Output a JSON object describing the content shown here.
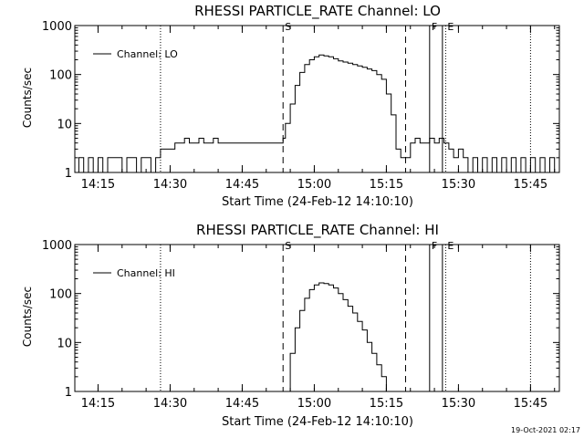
{
  "footer": {
    "timestamp": "19-Oct-2021 02:17"
  },
  "chart_data": [
    {
      "type": "line",
      "title": "RHESSI PARTICLE_RATE Channel: LO",
      "xlabel": "Start Time (24-Feb-12 14:10:10)",
      "ylabel": "Counts/sec",
      "y_scale": "log",
      "x_units": "time of day (24-Feb-12)",
      "xlim": [
        "14:10:10",
        "15:51:00"
      ],
      "ylim": [
        1,
        1000
      ],
      "x_ticks": [
        "14:15",
        "14:30",
        "14:45",
        "15:00",
        "15:15",
        "15:30",
        "15:45"
      ],
      "y_ticks": [
        "1",
        "10",
        "100",
        "1000"
      ],
      "grid": false,
      "legend": {
        "position": "top-left",
        "entries": [
          "Channel: LO"
        ]
      },
      "markers": [
        {
          "time": "14:28:00",
          "style": "dotted",
          "label": ""
        },
        {
          "time": "14:53:30",
          "style": "dashed",
          "label": "S"
        },
        {
          "time": "15:19:00",
          "style": "dashed",
          "label": ""
        },
        {
          "time": "15:24:00",
          "style": "solid",
          "label": "F"
        },
        {
          "time": "15:26:40",
          "style": "solid",
          "label": ""
        },
        {
          "time": "15:27:20",
          "style": "dotted",
          "label": "E"
        },
        {
          "time": "15:45:00",
          "style": "dotted",
          "label": ""
        }
      ],
      "series": [
        {
          "name": "Channel: LO",
          "x": [
            "14:10:10",
            "14:11:00",
            "14:12:00",
            "14:13:00",
            "14:14:00",
            "14:15:00",
            "14:16:00",
            "14:17:00",
            "14:18:00",
            "14:19:00",
            "14:20:00",
            "14:21:00",
            "14:22:00",
            "14:23:00",
            "14:24:00",
            "14:25:00",
            "14:26:00",
            "14:27:00",
            "14:28:00",
            "14:30:00",
            "14:31:00",
            "14:32:00",
            "14:33:00",
            "14:34:00",
            "14:35:00",
            "14:36:00",
            "14:37:00",
            "14:38:00",
            "14:39:00",
            "14:40:00",
            "14:42:00",
            "14:44:00",
            "14:46:00",
            "14:48:00",
            "14:50:00",
            "14:52:00",
            "14:53:30",
            "14:54:00",
            "14:55:00",
            "14:56:00",
            "14:57:00",
            "14:58:00",
            "14:59:00",
            "15:00:00",
            "15:01:00",
            "15:02:00",
            "15:03:00",
            "15:04:00",
            "15:05:00",
            "15:06:00",
            "15:07:00",
            "15:08:00",
            "15:09:00",
            "15:10:00",
            "15:11:00",
            "15:12:00",
            "15:13:00",
            "15:14:00",
            "15:15:00",
            "15:16:00",
            "15:17:00",
            "15:18:00",
            "15:19:00",
            "15:20:00",
            "15:21:00",
            "15:22:00",
            "15:23:00",
            "15:24:00",
            "15:25:00",
            "15:26:00",
            "15:27:00",
            "15:28:00",
            "15:29:00",
            "15:30:00",
            "15:31:00",
            "15:32:00",
            "15:33:00",
            "15:34:00",
            "15:35:00",
            "15:36:00",
            "15:37:00",
            "15:38:00",
            "15:39:00",
            "15:40:00",
            "15:41:00",
            "15:42:00",
            "15:43:00",
            "15:44:00",
            "15:45:00",
            "15:46:00",
            "15:47:00",
            "15:48:00",
            "15:49:00",
            "15:50:00",
            "15:51:00"
          ],
          "y": [
            1,
            2,
            1,
            2,
            1,
            2,
            1,
            2,
            2,
            2,
            1,
            2,
            2,
            1,
            2,
            2,
            1,
            2,
            3,
            3,
            4,
            4,
            5,
            4,
            4,
            5,
            4,
            4,
            5,
            4,
            4,
            4,
            4,
            4,
            4,
            4,
            5,
            10,
            25,
            60,
            110,
            160,
            200,
            230,
            250,
            240,
            230,
            210,
            190,
            180,
            170,
            160,
            150,
            140,
            130,
            120,
            100,
            80,
            40,
            15,
            3,
            2,
            2,
            4,
            5,
            4,
            4,
            5,
            4,
            5,
            4,
            3,
            2,
            3,
            2,
            1,
            2,
            1,
            2,
            1,
            2,
            1,
            2,
            1,
            2,
            1,
            2,
            1,
            2,
            1,
            2,
            1,
            2,
            1,
            2
          ]
        }
      ]
    },
    {
      "type": "line",
      "title": "RHESSI PARTICLE_RATE Channel: HI",
      "xlabel": "Start Time (24-Feb-12 14:10:10)",
      "ylabel": "Counts/sec",
      "y_scale": "log",
      "x_units": "time of day (24-Feb-12)",
      "xlim": [
        "14:10:10",
        "15:51:00"
      ],
      "ylim": [
        1,
        1000
      ],
      "x_ticks": [
        "14:15",
        "14:30",
        "14:45",
        "15:00",
        "15:15",
        "15:30",
        "15:45"
      ],
      "y_ticks": [
        "1",
        "10",
        "100",
        "1000"
      ],
      "grid": false,
      "legend": {
        "position": "top-left",
        "entries": [
          "Channel: HI"
        ]
      },
      "markers": [
        {
          "time": "14:28:00",
          "style": "dotted",
          "label": ""
        },
        {
          "time": "14:53:30",
          "style": "dashed",
          "label": "S"
        },
        {
          "time": "15:19:00",
          "style": "dashed",
          "label": ""
        },
        {
          "time": "15:24:00",
          "style": "solid",
          "label": "F"
        },
        {
          "time": "15:26:40",
          "style": "solid",
          "label": ""
        },
        {
          "time": "15:27:20",
          "style": "dotted",
          "label": "E"
        },
        {
          "time": "15:45:00",
          "style": "dotted",
          "label": ""
        }
      ],
      "series": [
        {
          "name": "Channel: HI",
          "x": [
            "14:54:00",
            "14:55:00",
            "14:56:00",
            "14:57:00",
            "14:58:00",
            "14:59:00",
            "15:00:00",
            "15:01:00",
            "15:02:00",
            "15:03:00",
            "15:04:00",
            "15:05:00",
            "15:06:00",
            "15:07:00",
            "15:08:00",
            "15:09:00",
            "15:10:00",
            "15:11:00",
            "15:12:00",
            "15:13:00",
            "15:14:00",
            "15:15:00"
          ],
          "y": [
            1,
            6,
            20,
            45,
            80,
            120,
            150,
            165,
            160,
            150,
            130,
            100,
            75,
            55,
            40,
            27,
            18,
            10,
            6,
            3.5,
            2,
            1
          ]
        }
      ]
    }
  ]
}
